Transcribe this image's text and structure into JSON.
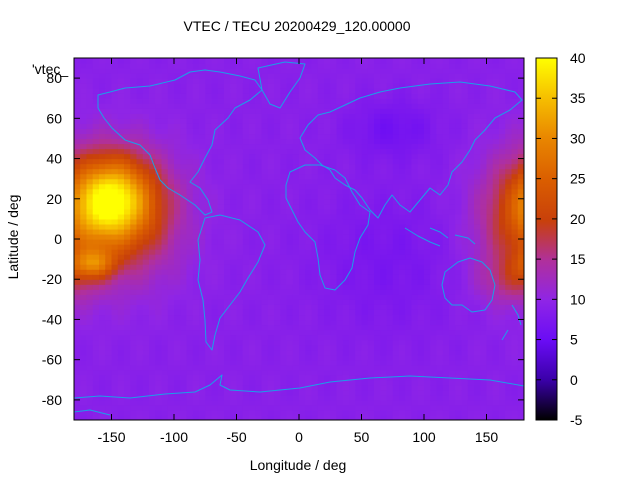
{
  "chart_data": {
    "type": "heatmap",
    "title": "VTEC / TECU 20200429_120.00000",
    "xlabel": "Longitude / deg",
    "ylabel": "Latitude / deg",
    "series_key": "'vtec_",
    "xlim": [
      -180,
      180
    ],
    "ylim": [
      -90,
      90
    ],
    "x_ticks": [
      -150,
      -100,
      -50,
      0,
      50,
      100,
      150
    ],
    "y_ticks": [
      -80,
      -60,
      -40,
      -20,
      0,
      20,
      40,
      60,
      80
    ],
    "colorbar": {
      "min": -5,
      "max": 40,
      "ticks": [
        -5,
        0,
        5,
        10,
        15,
        20,
        25,
        30,
        35,
        40
      ],
      "colormap": "gnuplot pm3d default (black-blue-red-yellow)"
    },
    "features": [
      {
        "lon": -150,
        "lat": 20,
        "sigma_lon": 22,
        "sigma_lat": 14,
        "amp": 22
      },
      {
        "lon": -135,
        "lat": 12,
        "sigma_lon": 30,
        "sigma_lat": 22,
        "amp": 10
      },
      {
        "lon": -165,
        "lat": -12,
        "sigma_lon": 12,
        "sigma_lat": 5,
        "amp": 12
      },
      {
        "lon": 178,
        "lat": 10,
        "sigma_lon": 25,
        "sigma_lat": 22,
        "amp": 10
      },
      {
        "lon": 170,
        "lat": -20,
        "sigma_lon": 18,
        "sigma_lat": 8,
        "amp": 5
      },
      {
        "lon": 75,
        "lat": 55,
        "sigma_lon": 25,
        "sigma_lat": 10,
        "amp": -3
      },
      {
        "lon": 70,
        "lat": -10,
        "sigma_lon": 40,
        "sigma_lat": 25,
        "amp": -2
      }
    ],
    "background_tecu": 9
  }
}
